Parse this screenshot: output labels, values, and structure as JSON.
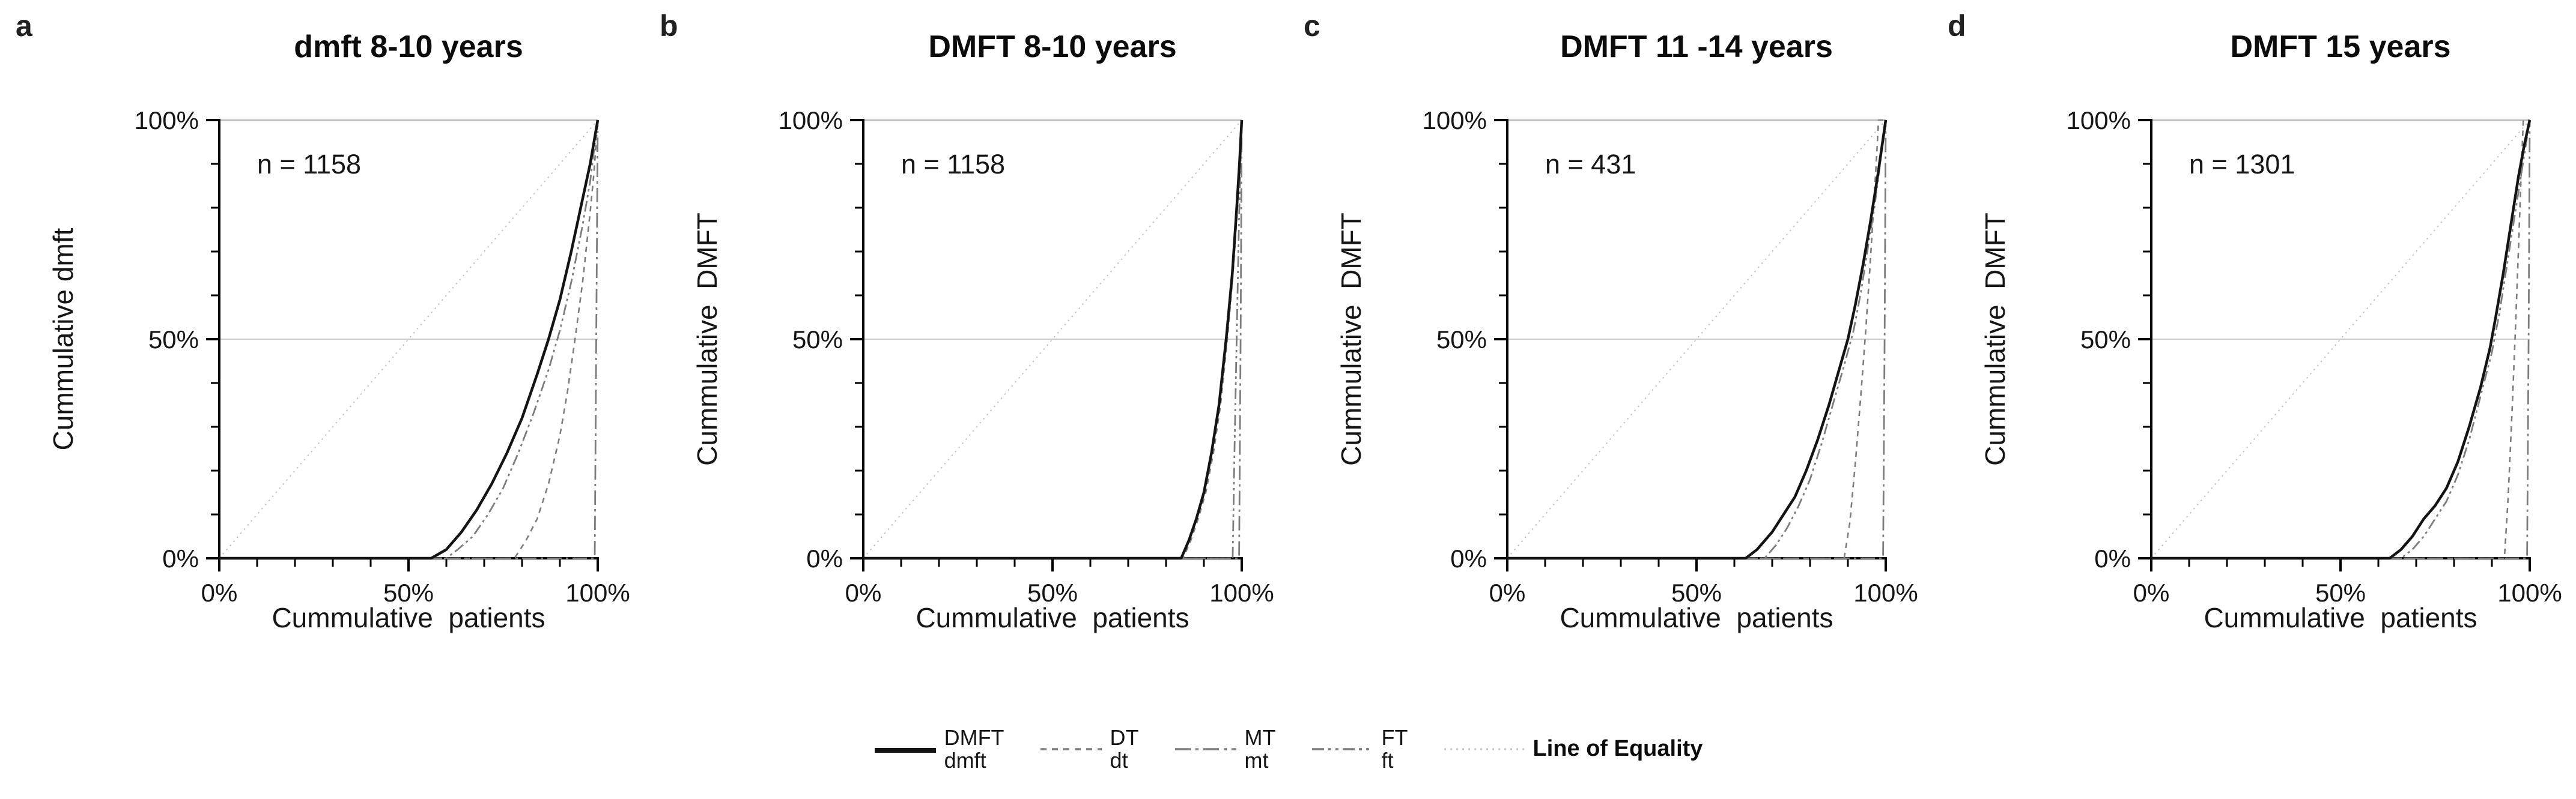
{
  "panels": [
    {
      "letter": "a",
      "title": "dmft 8-10 years",
      "n_label": "n = 1158",
      "x_axis_label": "Cummulative  patients",
      "y_axis_label": "Cummulative dmft"
    },
    {
      "letter": "b",
      "title": "DMFT 8-10 years",
      "n_label": "n = 1158",
      "x_axis_label": "Cummulative  patients",
      "y_axis_label": "Cummulative  DMFT"
    },
    {
      "letter": "c",
      "title": "DMFT 11 -14 years",
      "n_label": "n = 431",
      "x_axis_label": "Cummulative  patients",
      "y_axis_label": "Cummulative  DMFT"
    },
    {
      "letter": "d",
      "title": "DMFT 15 years",
      "n_label": "n = 1301",
      "x_axis_label": "Cummulative  patients",
      "y_axis_label": "Cummulative  DMFT"
    }
  ],
  "legend": {
    "items": [
      {
        "key": "dmft",
        "label_top": "DMFT",
        "label_bottom": "dmft"
      },
      {
        "key": "dt",
        "label_top": "DT",
        "label_bottom": "dt"
      },
      {
        "key": "mt",
        "label_top": "MT",
        "label_bottom": "mt"
      },
      {
        "key": "ft",
        "label_top": "FT",
        "label_bottom": "ft"
      },
      {
        "key": "equality",
        "label": "Line of Equality"
      }
    ]
  },
  "colors": {
    "solid_curve": "#141414",
    "gray_curve": "#7d7d7d",
    "equality_line": "#c2c2c2",
    "gridline": "#cccccc",
    "top_border": "#b3b3b3",
    "axis": "#000000"
  },
  "chart_data": [
    {
      "type": "line",
      "title": "dmft 8-10 years",
      "n": 1158,
      "xlabel": "Cummulative patients",
      "ylabel": "Cummulative dmft",
      "xlim": [
        0,
        100
      ],
      "ylim": [
        0,
        100
      ],
      "x_ticks": [
        {
          "pos": 0,
          "label": "0%"
        },
        {
          "pos": 50,
          "label": "50%"
        },
        {
          "pos": 100,
          "label": "100%"
        }
      ],
      "y_ticks": [
        {
          "pos": 0,
          "label": "0%"
        },
        {
          "pos": 50,
          "label": "50%"
        },
        {
          "pos": 100,
          "label": "100%"
        }
      ],
      "minor_tick_step": 10,
      "gridlines_y": [
        50,
        100
      ],
      "series": [
        {
          "name": "Line of Equality",
          "key": "equality",
          "points": [
            [
              0,
              0
            ],
            [
              100,
              100
            ]
          ]
        },
        {
          "name": "mt",
          "key": "mt",
          "points": [
            [
              0,
              0
            ],
            [
              99.2,
              0
            ],
            [
              99.6,
              50
            ],
            [
              100,
              100
            ]
          ]
        },
        {
          "name": "dt",
          "key": "dt",
          "points": [
            [
              0,
              0
            ],
            [
              78,
              0
            ],
            [
              81,
              4
            ],
            [
              84,
              9
            ],
            [
              87,
              17
            ],
            [
              90,
              28
            ],
            [
              92,
              38
            ],
            [
              94,
              50
            ],
            [
              96,
              63
            ],
            [
              98,
              79
            ],
            [
              99,
              88
            ],
            [
              100,
              100
            ]
          ]
        },
        {
          "name": "ft",
          "key": "ft",
          "points": [
            [
              0,
              0
            ],
            [
              60,
              0
            ],
            [
              63,
              2
            ],
            [
              67,
              5
            ],
            [
              71,
              10
            ],
            [
              75,
              16
            ],
            [
              79,
              24
            ],
            [
              83,
              33
            ],
            [
              87,
              43
            ],
            [
              90,
              52
            ],
            [
              93,
              63
            ],
            [
              96,
              76
            ],
            [
              98,
              86
            ],
            [
              100,
              100
            ]
          ]
        },
        {
          "name": "dmft",
          "key": "dmft",
          "points": [
            [
              0,
              0
            ],
            [
              56,
              0
            ],
            [
              60,
              2
            ],
            [
              64,
              6
            ],
            [
              68,
              11
            ],
            [
              72,
              17
            ],
            [
              76,
              24
            ],
            [
              80,
              32
            ],
            [
              84,
              42
            ],
            [
              87,
              50
            ],
            [
              90,
              59
            ],
            [
              93,
              70
            ],
            [
              96,
              82
            ],
            [
              98,
              90
            ],
            [
              100,
              100
            ]
          ]
        }
      ]
    },
    {
      "type": "line",
      "title": "DMFT 8-10 years",
      "n": 1158,
      "xlabel": "Cummulative patients",
      "ylabel": "Cummulative DMFT",
      "xlim": [
        0,
        100
      ],
      "ylim": [
        0,
        100
      ],
      "x_ticks": [
        {
          "pos": 0,
          "label": "0%"
        },
        {
          "pos": 50,
          "label": "50%"
        },
        {
          "pos": 100,
          "label": "100%"
        }
      ],
      "y_ticks": [
        {
          "pos": 0,
          "label": "0%"
        },
        {
          "pos": 50,
          "label": "50%"
        },
        {
          "pos": 100,
          "label": "100%"
        }
      ],
      "minor_tick_step": 10,
      "gridlines_y": [
        50,
        100
      ],
      "series": [
        {
          "name": "Line of Equality",
          "key": "equality",
          "points": [
            [
              0,
              0
            ],
            [
              100,
              100
            ]
          ]
        },
        {
          "name": "MT",
          "key": "mt",
          "points": [
            [
              0,
              0
            ],
            [
              99.3,
              0
            ],
            [
              99.7,
              50
            ],
            [
              100,
              100
            ]
          ]
        },
        {
          "name": "FT",
          "key": "ft",
          "points": [
            [
              0,
              0
            ],
            [
              97.6,
              0
            ],
            [
              98.1,
              25
            ],
            [
              98.7,
              52
            ],
            [
              99.3,
              78
            ],
            [
              100,
              100
            ]
          ]
        },
        {
          "name": "DT",
          "key": "dt",
          "points": [
            [
              0,
              0
            ],
            [
              84.5,
              0
            ],
            [
              86.5,
              4
            ],
            [
              88.5,
              9
            ],
            [
              90.5,
              15
            ],
            [
              92.5,
              24
            ],
            [
              94.4,
              35
            ],
            [
              96.3,
              51
            ],
            [
              97.7,
              65
            ],
            [
              98.8,
              79
            ],
            [
              99.5,
              90
            ],
            [
              100,
              100
            ]
          ]
        },
        {
          "name": "DMFT",
          "key": "dmft",
          "points": [
            [
              0,
              0
            ],
            [
              84,
              0
            ],
            [
              86,
              4
            ],
            [
              88,
              9
            ],
            [
              90,
              15
            ],
            [
              92,
              24
            ],
            [
              94,
              35
            ],
            [
              96,
              51
            ],
            [
              97.5,
              65
            ],
            [
              98.6,
              79
            ],
            [
              99.4,
              90
            ],
            [
              100,
              100
            ]
          ]
        }
      ]
    },
    {
      "type": "line",
      "title": "DMFT 11 -14 years",
      "n": 431,
      "xlabel": "Cummulative patients",
      "ylabel": "Cummulative DMFT",
      "xlim": [
        0,
        100
      ],
      "ylim": [
        0,
        100
      ],
      "x_ticks": [
        {
          "pos": 0,
          "label": "0%"
        },
        {
          "pos": 50,
          "label": "50%"
        },
        {
          "pos": 100,
          "label": "100%"
        }
      ],
      "y_ticks": [
        {
          "pos": 0,
          "label": "0%"
        },
        {
          "pos": 50,
          "label": "50%"
        },
        {
          "pos": 100,
          "label": "100%"
        }
      ],
      "minor_tick_step": 10,
      "gridlines_y": [
        50,
        100
      ],
      "series": [
        {
          "name": "Line of Equality",
          "key": "equality",
          "points": [
            [
              0,
              0
            ],
            [
              100,
              100
            ]
          ]
        },
        {
          "name": "MT",
          "key": "mt",
          "points": [
            [
              0,
              0
            ],
            [
              99.3,
              0
            ],
            [
              99.7,
              50
            ],
            [
              100,
              100
            ]
          ]
        },
        {
          "name": "DT",
          "key": "dt",
          "points": [
            [
              0,
              0
            ],
            [
              89,
              0
            ],
            [
              90.5,
              8
            ],
            [
              92,
              22
            ],
            [
              93.5,
              38
            ],
            [
              94.8,
              53
            ],
            [
              95.8,
              66
            ],
            [
              96.8,
              80
            ],
            [
              97.6,
              92
            ],
            [
              98.1,
              100
            ],
            [
              100,
              100
            ]
          ]
        },
        {
          "name": "FT",
          "key": "ft",
          "points": [
            [
              0,
              0
            ],
            [
              68,
              0
            ],
            [
              71,
              3
            ],
            [
              74,
              7
            ],
            [
              77,
              12
            ],
            [
              80,
              18
            ],
            [
              83,
              26
            ],
            [
              86,
              35
            ],
            [
              89,
              44
            ],
            [
              91.5,
              52
            ],
            [
              93.5,
              61
            ],
            [
              95.5,
              72
            ],
            [
              97,
              80
            ],
            [
              100,
              100
            ]
          ]
        },
        {
          "name": "DMFT",
          "key": "dmft",
          "points": [
            [
              0,
              0
            ],
            [
              63,
              0
            ],
            [
              66,
              2
            ],
            [
              70,
              6
            ],
            [
              73,
              10
            ],
            [
              76,
              14
            ],
            [
              79,
              20
            ],
            [
              82,
              27
            ],
            [
              85,
              35
            ],
            [
              88,
              44
            ],
            [
              90,
              50
            ],
            [
              92,
              58
            ],
            [
              94,
              67
            ],
            [
              96,
              77
            ],
            [
              98,
              88
            ],
            [
              100,
              100
            ]
          ]
        }
      ]
    },
    {
      "type": "line",
      "title": "DMFT 15 years",
      "n": 1301,
      "xlabel": "Cummulative patients",
      "ylabel": "Cummulative DMFT",
      "xlim": [
        0,
        100
      ],
      "ylim": [
        0,
        100
      ],
      "x_ticks": [
        {
          "pos": 0,
          "label": "0%"
        },
        {
          "pos": 50,
          "label": "50%"
        },
        {
          "pos": 100,
          "label": "100%"
        }
      ],
      "y_ticks": [
        {
          "pos": 0,
          "label": "0%"
        },
        {
          "pos": 50,
          "label": "50%"
        },
        {
          "pos": 100,
          "label": "100%"
        }
      ],
      "minor_tick_step": 10,
      "gridlines_y": [
        50,
        100
      ],
      "series": [
        {
          "name": "Line of Equality",
          "key": "equality",
          "points": [
            [
              0,
              0
            ],
            [
              100,
              100
            ]
          ]
        },
        {
          "name": "MT",
          "key": "mt",
          "points": [
            [
              0,
              0
            ],
            [
              99.3,
              0
            ],
            [
              99.7,
              50
            ],
            [
              100,
              100
            ]
          ]
        },
        {
          "name": "DT",
          "key": "dt",
          "points": [
            [
              0,
              0
            ],
            [
              93.3,
              0
            ],
            [
              94.3,
              14
            ],
            [
              95.3,
              33
            ],
            [
              96.2,
              52
            ],
            [
              97,
              70
            ],
            [
              97.7,
              87
            ],
            [
              98.3,
              100
            ],
            [
              100,
              100
            ]
          ]
        },
        {
          "name": "FT",
          "key": "ft",
          "points": [
            [
              0,
              0
            ],
            [
              66,
              0
            ],
            [
              69,
              2
            ],
            [
              72,
              5
            ],
            [
              75,
              9
            ],
            [
              78,
              13
            ],
            [
              81,
              19
            ],
            [
              84,
              27
            ],
            [
              87,
              37
            ],
            [
              90,
              47
            ],
            [
              92,
              56
            ],
            [
              94,
              67
            ],
            [
              96,
              78
            ],
            [
              98,
              89
            ],
            [
              100,
              100
            ]
          ]
        },
        {
          "name": "DMFT",
          "key": "dmft",
          "points": [
            [
              0,
              0
            ],
            [
              63,
              0
            ],
            [
              66,
              2
            ],
            [
              69,
              5
            ],
            [
              72,
              9
            ],
            [
              75,
              12
            ],
            [
              78,
              16
            ],
            [
              81,
              22
            ],
            [
              84,
              30
            ],
            [
              87,
              39
            ],
            [
              89.5,
              48
            ],
            [
              91,
              55
            ],
            [
              93,
              65
            ],
            [
              95,
              76
            ],
            [
              97,
              87
            ],
            [
              98.5,
              94
            ],
            [
              100,
              100
            ]
          ]
        }
      ]
    }
  ]
}
